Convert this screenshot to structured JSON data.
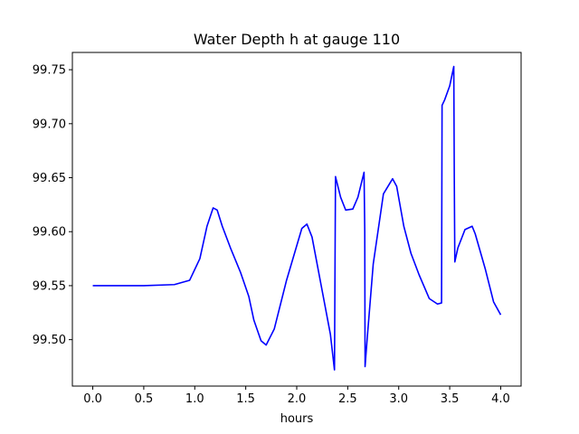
{
  "chart_data": {
    "type": "line",
    "title": "Water Depth h at gauge 110",
    "xlabel": "hours",
    "ylabel": "",
    "xlim": [
      -0.2,
      4.2
    ],
    "ylim": [
      99.457,
      99.766
    ],
    "xticks": [
      "0.0",
      "0.5",
      "1.0",
      "1.5",
      "2.0",
      "2.5",
      "3.0",
      "3.5",
      "4.0"
    ],
    "yticks": [
      "99.50",
      "99.55",
      "99.60",
      "99.65",
      "99.70",
      "99.75"
    ],
    "grid": false,
    "line_color": "#0000ff",
    "series": [
      {
        "x": [
          0.0,
          0.5,
          0.8,
          0.95,
          1.05,
          1.12,
          1.18,
          1.22,
          1.27,
          1.35,
          1.45,
          1.53,
          1.58,
          1.65,
          1.7,
          1.78,
          1.9,
          2.05,
          2.1,
          2.15,
          2.25,
          2.33,
          2.37,
          2.38,
          2.43,
          2.48,
          2.55,
          2.6,
          2.66,
          2.667,
          2.67,
          2.69,
          2.75,
          2.85,
          2.94,
          2.98,
          3.05,
          3.12,
          3.2,
          3.3,
          3.38,
          3.42,
          3.425,
          3.45,
          3.5,
          3.54,
          3.545,
          3.55,
          3.58,
          3.65,
          3.72,
          3.75,
          3.85,
          3.93,
          4.0
        ],
        "y": [
          99.55,
          99.55,
          99.551,
          99.555,
          99.575,
          99.605,
          99.622,
          99.62,
          99.605,
          99.585,
          99.562,
          99.54,
          99.518,
          99.499,
          99.495,
          99.51,
          99.555,
          99.603,
          99.607,
          99.595,
          99.545,
          99.505,
          99.472,
          99.651,
          99.632,
          99.62,
          99.621,
          99.632,
          99.655,
          99.6,
          99.475,
          99.5,
          99.57,
          99.635,
          99.649,
          99.642,
          99.605,
          99.58,
          99.56,
          99.538,
          99.533,
          99.534,
          99.717,
          99.722,
          99.735,
          99.753,
          99.65,
          99.572,
          99.585,
          99.602,
          99.605,
          99.598,
          99.565,
          99.535,
          99.523
        ]
      }
    ]
  }
}
